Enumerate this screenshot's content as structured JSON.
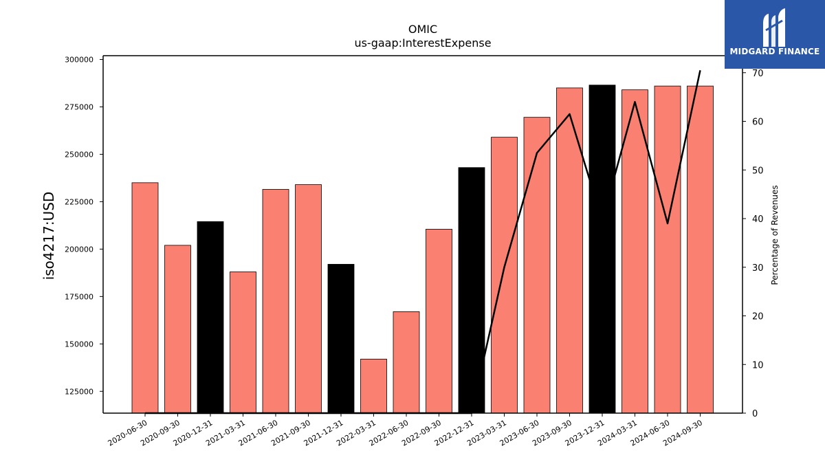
{
  "chart_data": {
    "type": "bar",
    "title": "OMIC",
    "subtitle": "us-gaap:InterestExpense",
    "ylabel": "iso4217:USD",
    "y2label": "Percentage of Revenues",
    "categories": [
      "2020-06-30",
      "2020-09-30",
      "2020-12-31",
      "2021-03-31",
      "2021-06-30",
      "2021-09-30",
      "2021-12-31",
      "2022-03-31",
      "2022-06-30",
      "2022-09-30",
      "2022-12-31",
      "2023-03-31",
      "2023-06-30",
      "2023-09-30",
      "2023-12-31",
      "2024-03-31",
      "2024-06-30",
      "2024-09-30"
    ],
    "series": [
      {
        "values": [
          235000,
          202000,
          214500,
          188000,
          231500,
          234000,
          192000,
          142000,
          167000,
          210500,
          243000,
          259000,
          269500,
          285000,
          286500,
          284000,
          286000,
          286000
        ],
        "highlight": [
          false,
          false,
          true,
          false,
          false,
          false,
          true,
          false,
          false,
          false,
          true,
          false,
          false,
          false,
          true,
          false,
          false,
          false
        ],
        "color": "#fa8072",
        "highlight_color": "#000000",
        "axis": "left"
      },
      {
        "type": "line",
        "values": [
          0,
          0,
          0,
          0,
          0,
          0,
          0,
          0,
          0,
          0,
          0,
          30,
          53.5,
          61.5,
          39.5,
          64,
          39,
          70.5
        ],
        "color": "#000000",
        "axis": "right"
      }
    ],
    "ylim": [
      113500,
      302000
    ],
    "y_ticks": [
      125000,
      150000,
      175000,
      200000,
      225000,
      250000,
      275000,
      300000
    ],
    "y2lim": [
      0,
      73.5
    ],
    "y2_ticks": [
      0,
      10,
      20,
      30,
      40,
      50,
      60,
      70
    ],
    "grid": false,
    "legend": "none"
  },
  "logo": {
    "text": "MIDGARD FINANCE",
    "background": "#2a57a8"
  }
}
